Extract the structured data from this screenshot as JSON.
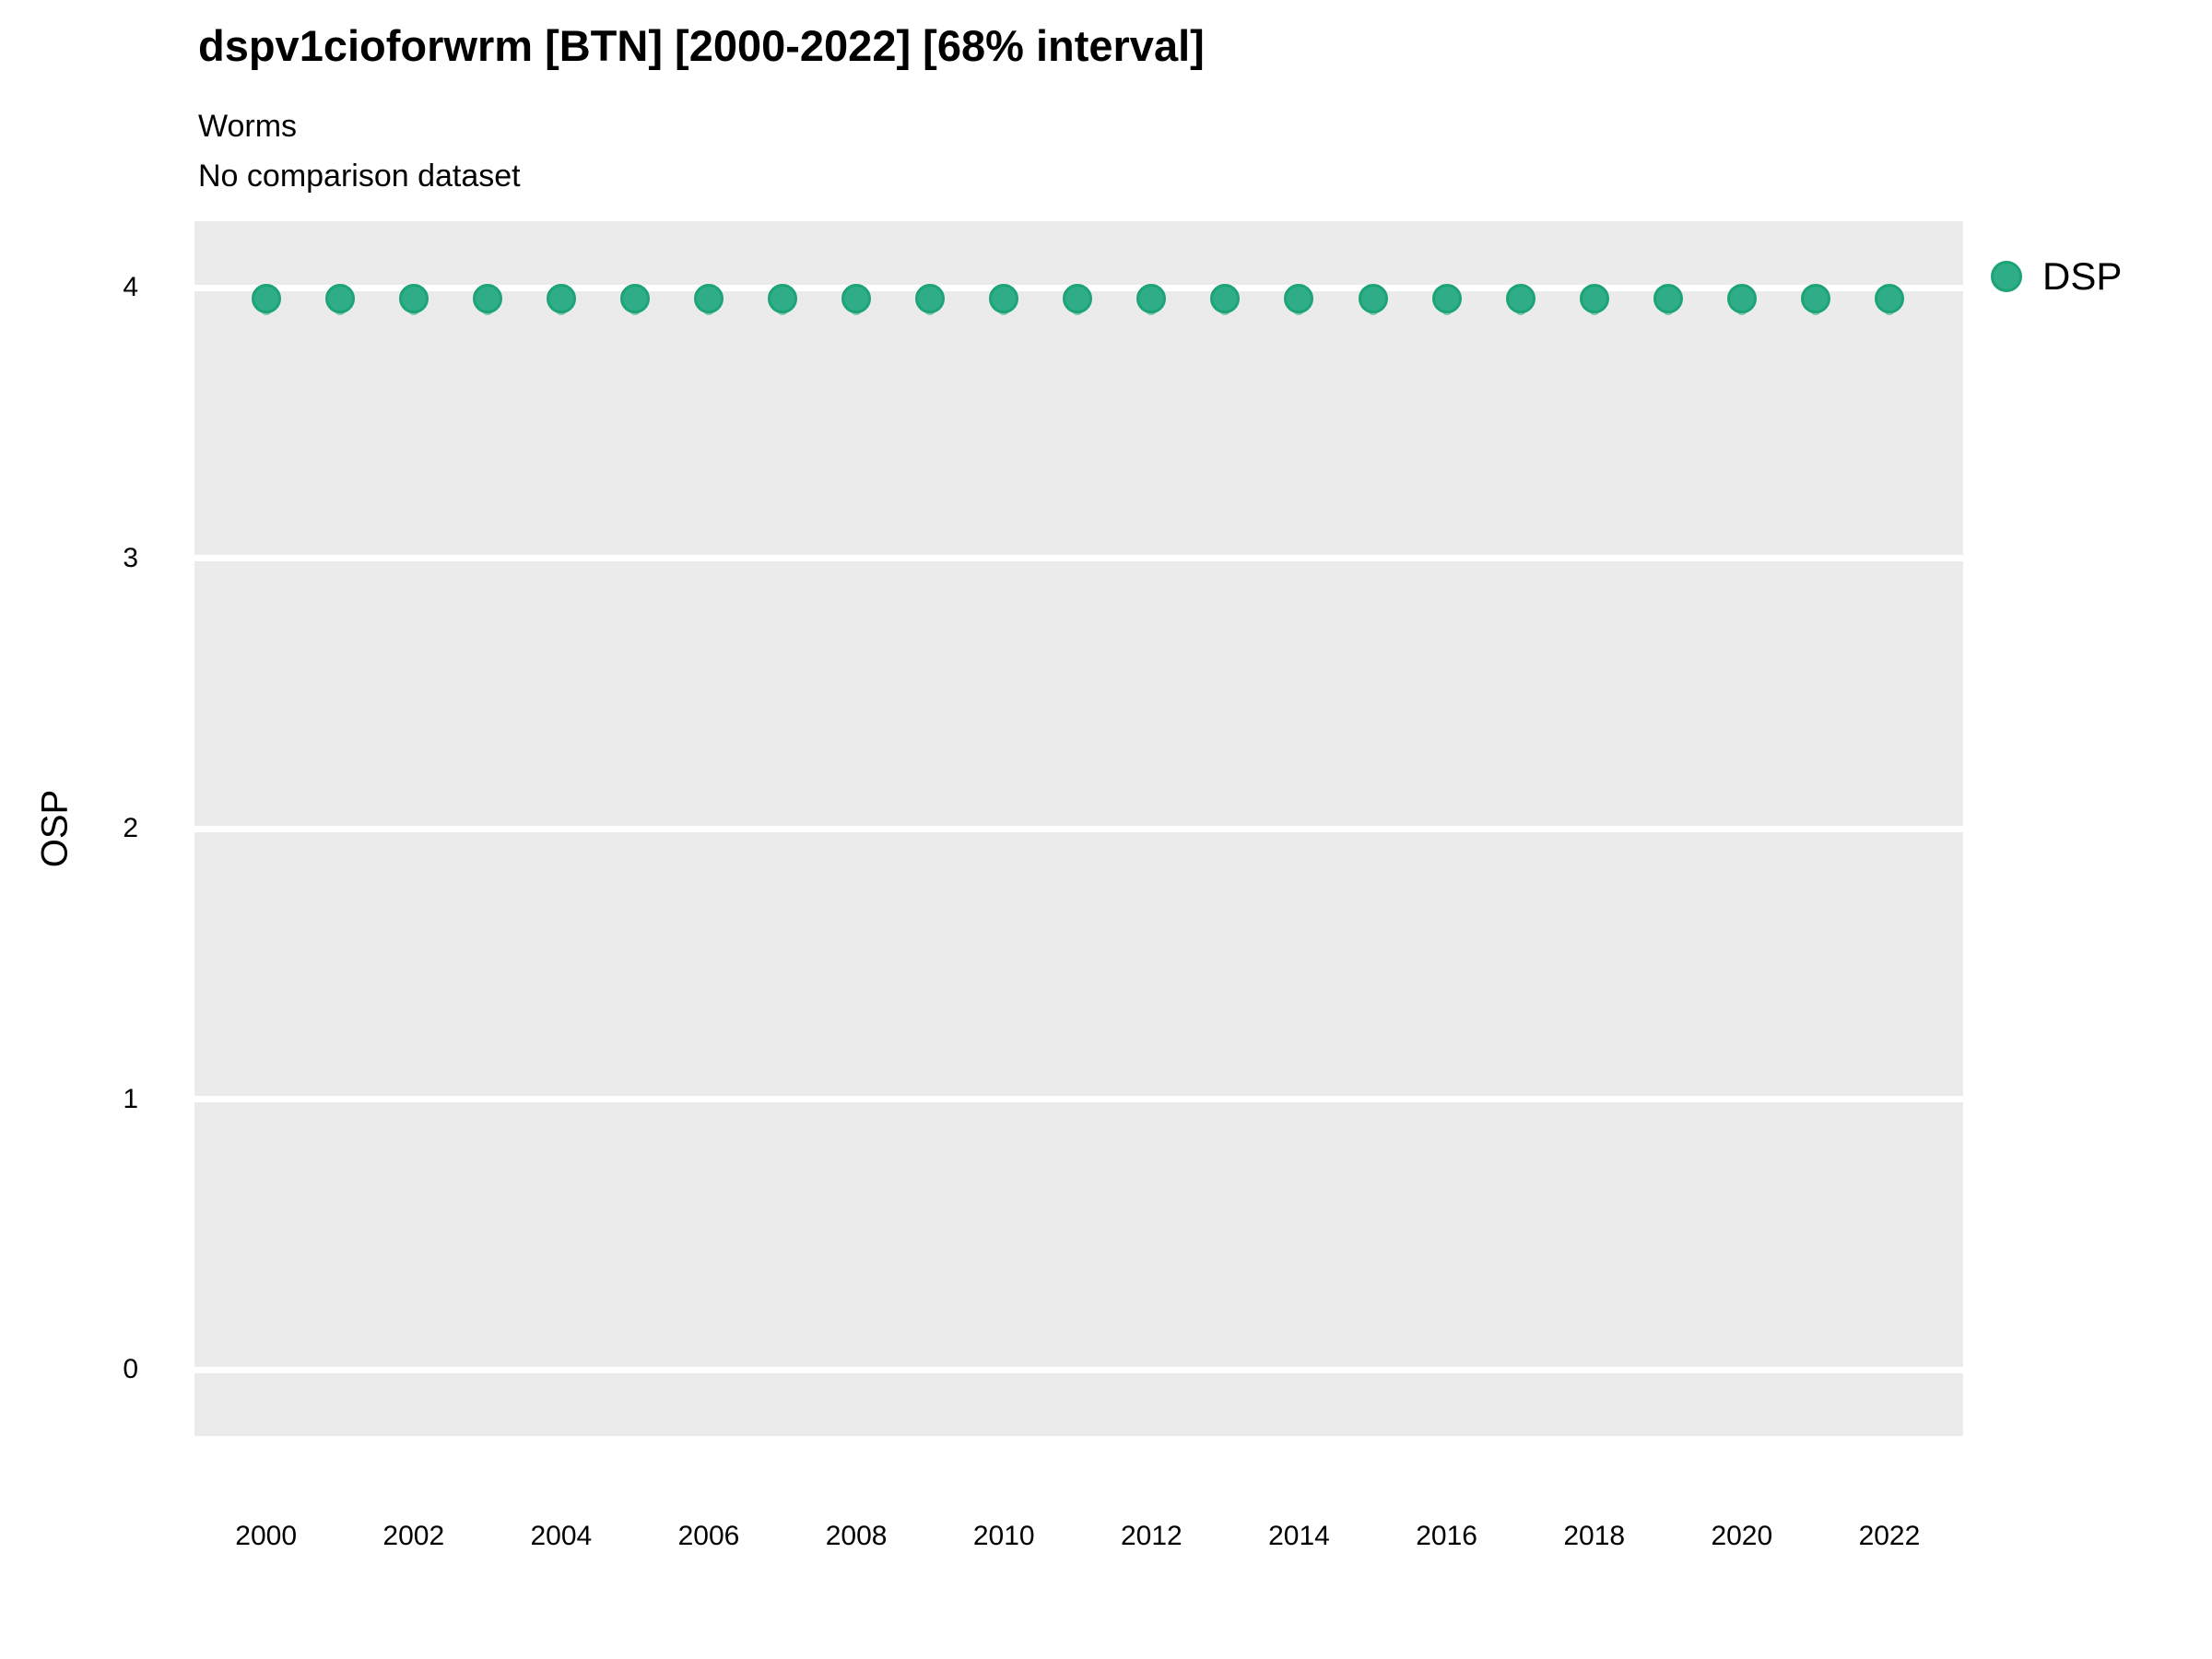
{
  "header": {
    "title": "dspv1cioforwrm [BTN] [2000-2022] [68% interval]",
    "subtitle1": "Worms",
    "subtitle2": "No comparison dataset"
  },
  "legend": {
    "label": "DSP",
    "position": "right",
    "marker": "dot-icon"
  },
  "axes": {
    "y_title": "OSP",
    "x_title": ""
  },
  "colors": {
    "point_fill": "#2EAD86",
    "point_stroke": "#1DA376",
    "interval_fill": "rgba(46,173,134,0.55)",
    "panel_background": "#EBEBEB",
    "gridline": "#FFFFFF",
    "text": "#000000"
  },
  "chart_data": {
    "type": "scatter",
    "title": "dspv1cioforwrm [BTN] [2000-2022] [68% interval]",
    "subtitle": [
      "Worms",
      "No comparison dataset"
    ],
    "xlabel": "",
    "ylabel": "OSP",
    "x": [
      2000,
      2001,
      2002,
      2003,
      2004,
      2005,
      2006,
      2007,
      2008,
      2009,
      2010,
      2011,
      2012,
      2013,
      2014,
      2015,
      2016,
      2017,
      2018,
      2019,
      2020,
      2021,
      2022
    ],
    "series": [
      {
        "name": "DSP",
        "values": [
          3.96,
          3.96,
          3.96,
          3.96,
          3.96,
          3.96,
          3.96,
          3.96,
          3.96,
          3.96,
          3.96,
          3.96,
          3.96,
          3.96,
          3.96,
          3.96,
          3.96,
          3.96,
          3.96,
          3.96,
          3.96,
          3.96,
          3.96
        ],
        "interval_low": [
          3.9,
          3.9,
          3.9,
          3.9,
          3.9,
          3.9,
          3.9,
          3.9,
          3.9,
          3.9,
          3.9,
          3.9,
          3.9,
          3.9,
          3.9,
          3.9,
          3.9,
          3.9,
          3.9,
          3.9,
          3.9,
          3.9,
          3.9
        ],
        "interval_high": [
          3.98,
          3.98,
          3.98,
          3.98,
          3.98,
          3.98,
          3.98,
          3.98,
          3.98,
          3.98,
          3.98,
          3.98,
          3.98,
          3.98,
          3.98,
          3.98,
          3.98,
          3.98,
          3.98,
          3.98,
          3.98,
          3.98,
          3.98
        ]
      }
    ],
    "ylim": [
      -0.245,
      4.247
    ],
    "xlim": [
      1999.03,
      2023.0
    ],
    "yticks": [
      0,
      1,
      2,
      3,
      4
    ],
    "xticks": [
      2000,
      2002,
      2004,
      2006,
      2008,
      2010,
      2012,
      2014,
      2016,
      2018,
      2020,
      2022
    ],
    "grid": "horizontal-major-only",
    "legend_position": "right",
    "interval_note": "68% interval"
  }
}
